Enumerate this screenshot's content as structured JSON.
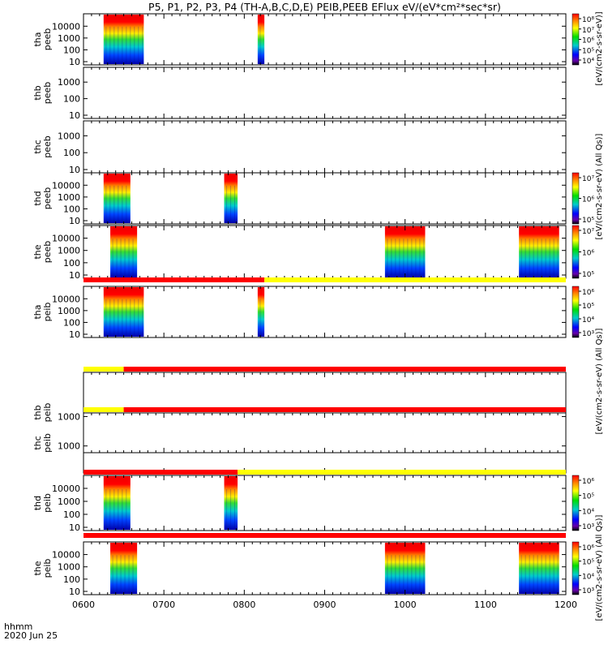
{
  "title": "P5, P1, P2, P3, P4 (TH-A,B,C,D,E) PEIB,PEEB EFlux eV/(eV*cm²*sec*sr)",
  "time_axis": {
    "label_line1": "hhmm",
    "label_line2": "2020 Jun 25",
    "ticks": [
      "0600",
      "0700",
      "0800",
      "0900",
      "1000",
      "1100",
      "1200"
    ]
  },
  "colorbar_units": "[eV/(cm2-s-sr-eV)]",
  "colorbar_units_alt": "[eV/(cm2-s-sr-eV) (All Qs)]",
  "colors": {
    "spectrogram": [
      "#ff0000",
      "#ff8800",
      "#ffee00",
      "#33dd33",
      "#00cccc",
      "#0044ff",
      "#0000aa"
    ],
    "mode_bar_red": "#ff0000",
    "mode_bar_yellow": "#ffff00"
  },
  "chart_data": {
    "type": "heatmap",
    "x_unit": "hhmm",
    "x_range": [
      "0600",
      "1200"
    ],
    "panels": [
      {
        "line1": "tha",
        "line2": "peeb",
        "yticks": [
          "10",
          "100",
          "1000",
          "10000"
        ],
        "intervals": [
          [
            "0615",
            "0645"
          ],
          [
            "0810",
            "0815"
          ]
        ],
        "colorbar_ticks": [
          "10⁴",
          "10⁵",
          "10⁶",
          "10⁷",
          "10⁸"
        ]
      },
      {
        "line1": "thb",
        "line2": "peeb",
        "yticks": [
          "10",
          "100",
          "1000"
        ],
        "intervals": []
      },
      {
        "line1": "thc",
        "line2": "peeb",
        "yticks": [
          "10",
          "100",
          "1000"
        ],
        "intervals": []
      },
      {
        "line1": "thd",
        "line2": "peeb",
        "yticks": [
          "10",
          "100",
          "1000",
          "10000"
        ],
        "intervals": [
          [
            "0615",
            "0635"
          ],
          [
            "0745",
            "0755"
          ]
        ],
        "colorbar_ticks": [
          "10⁵",
          "10⁶",
          "10⁷"
        ]
      },
      {
        "line1": "the",
        "line2": "peeb",
        "yticks": [
          "10",
          "100",
          "1000",
          "10000"
        ],
        "intervals": [
          [
            "0620",
            "0640"
          ],
          [
            "0945",
            "1015"
          ],
          [
            "1125",
            "1155"
          ]
        ],
        "colorbar_ticks": [
          "10⁵",
          "10⁶",
          "10⁷"
        ]
      },
      {
        "line1": "tha",
        "line2": "peib",
        "yticks": [
          "10",
          "100",
          "1000",
          "10000"
        ],
        "intervals": [
          [
            "0615",
            "0645"
          ],
          [
            "0810",
            "0815"
          ]
        ],
        "colorbar_ticks": [
          "10³",
          "10⁴",
          "10⁵",
          "10⁶"
        ]
      },
      {
        "line1": "thb",
        "line2": "peib",
        "yticks": [
          "1000"
        ],
        "intervals": []
      },
      {
        "line1": "thc",
        "line2": "peib",
        "yticks": [
          "1000"
        ],
        "intervals": []
      },
      {
        "line1": "thd",
        "line2": "peib",
        "yticks": [
          "10",
          "100",
          "1000",
          "10000"
        ],
        "intervals": [
          [
            "0615",
            "0635"
          ],
          [
            "0745",
            "0755"
          ]
        ],
        "colorbar_ticks": [
          "10³",
          "10⁴",
          "10⁵",
          "10⁶"
        ]
      },
      {
        "line1": "the",
        "line2": "peib",
        "yticks": [
          "10",
          "100",
          "1000",
          "10000"
        ],
        "intervals": [
          [
            "0620",
            "0640"
          ],
          [
            "0945",
            "1015"
          ],
          [
            "1125",
            "1155"
          ]
        ],
        "colorbar_ticks": [
          "10³",
          "10⁴",
          "10⁵",
          "10⁶"
        ]
      }
    ],
    "mode_bars": [
      [
        {
          "color": "red",
          "from": "0600",
          "to": "0815"
        },
        {
          "color": "yellow",
          "from": "0815",
          "to": "1200"
        }
      ],
      [
        {
          "color": "yellow",
          "from": "0600",
          "to": "0630"
        },
        {
          "color": "red",
          "from": "0630",
          "to": "1200"
        }
      ],
      [
        {
          "color": "yellow",
          "from": "0600",
          "to": "0630"
        },
        {
          "color": "red",
          "from": "0630",
          "to": "1200"
        }
      ],
      [
        {
          "color": "red",
          "from": "0600",
          "to": "0755"
        },
        {
          "color": "yellow",
          "from": "0755",
          "to": "1200"
        }
      ],
      [
        {
          "color": "red",
          "from": "0600",
          "to": "1200"
        }
      ]
    ]
  }
}
